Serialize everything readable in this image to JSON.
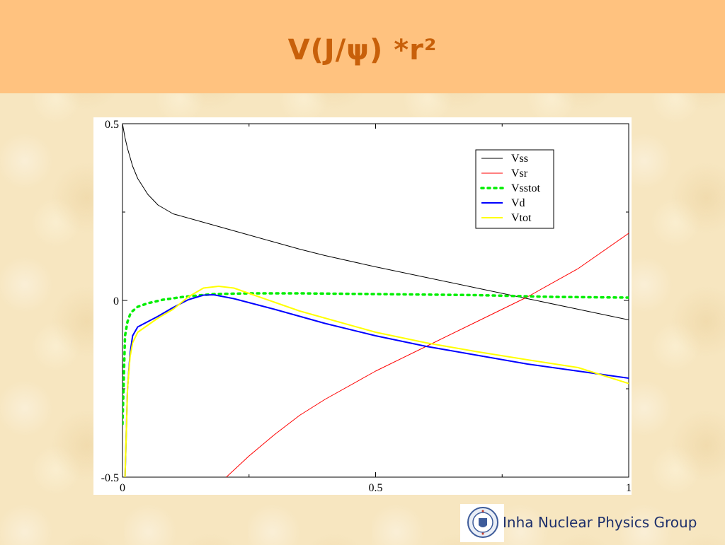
{
  "header": {
    "title": "V(J/ψ) *r²"
  },
  "footer": {
    "group_name": "Inha Nuclear Physics Group",
    "logo_icon": "university-seal-icon"
  },
  "chart_data": {
    "type": "line",
    "x_tick_labels": [
      "0",
      "0.5",
      "1"
    ],
    "y_tick_labels": [
      "-0.5",
      "0",
      "0.5"
    ],
    "xlim": [
      0,
      1
    ],
    "ylim": [
      -0.5,
      0.5
    ],
    "grid": false,
    "legend_position": "top-right",
    "series": [
      {
        "name": "Vss",
        "color": "#000000",
        "style": "solid",
        "x": [
          0.0,
          0.005,
          0.01,
          0.02,
          0.03,
          0.05,
          0.07,
          0.1,
          0.15,
          0.2,
          0.25,
          0.3,
          0.35,
          0.4,
          0.5,
          0.6,
          0.7,
          0.8,
          0.9,
          1.0
        ],
        "y": [
          0.5,
          0.46,
          0.43,
          0.38,
          0.345,
          0.3,
          0.27,
          0.245,
          0.225,
          0.205,
          0.185,
          0.165,
          0.145,
          0.127,
          0.095,
          0.065,
          0.035,
          0.005,
          -0.025,
          -0.055
        ]
      },
      {
        "name": "Vsr",
        "color": "#ff0000",
        "style": "solid",
        "x": [
          0.205,
          0.25,
          0.3,
          0.35,
          0.4,
          0.5,
          0.6,
          0.7,
          0.8,
          0.9,
          1.0
        ],
        "y": [
          -0.5,
          -0.44,
          -0.38,
          -0.325,
          -0.28,
          -0.2,
          -0.13,
          -0.06,
          0.01,
          0.09,
          0.19
        ]
      },
      {
        "name": "Vsstot",
        "color": "#00ee00",
        "style": "dotted",
        "x": [
          0.0,
          0.005,
          0.01,
          0.015,
          0.02,
          0.03,
          0.05,
          0.08,
          0.12,
          0.18,
          0.25,
          0.35,
          0.5,
          0.7,
          0.85,
          1.0
        ],
        "y": [
          -0.35,
          -0.1,
          -0.06,
          -0.04,
          -0.03,
          -0.018,
          -0.008,
          0.002,
          0.01,
          0.018,
          0.02,
          0.02,
          0.018,
          0.015,
          0.01,
          0.008
        ]
      },
      {
        "name": "Vd",
        "color": "#0000ff",
        "style": "solid",
        "x": [
          0.005,
          0.01,
          0.015,
          0.02,
          0.03,
          0.05,
          0.07,
          0.1,
          0.13,
          0.16,
          0.18,
          0.22,
          0.26,
          0.3,
          0.35,
          0.4,
          0.5,
          0.6,
          0.7,
          0.8,
          0.9,
          1.0
        ],
        "y": [
          -0.5,
          -0.25,
          -0.15,
          -0.1,
          -0.075,
          -0.06,
          -0.045,
          -0.02,
          0.002,
          0.015,
          0.016,
          0.005,
          -0.01,
          -0.025,
          -0.045,
          -0.065,
          -0.1,
          -0.13,
          -0.155,
          -0.18,
          -0.2,
          -0.22
        ]
      },
      {
        "name": "Vtot",
        "color": "#ffff00",
        "style": "solid",
        "x": [
          0.005,
          0.01,
          0.015,
          0.02,
          0.03,
          0.05,
          0.07,
          0.1,
          0.13,
          0.16,
          0.19,
          0.22,
          0.26,
          0.3,
          0.35,
          0.4,
          0.5,
          0.6,
          0.7,
          0.8,
          0.9,
          1.0
        ],
        "y": [
          -0.5,
          -0.25,
          -0.16,
          -0.12,
          -0.09,
          -0.07,
          -0.05,
          -0.025,
          0.01,
          0.035,
          0.04,
          0.035,
          0.015,
          -0.005,
          -0.03,
          -0.05,
          -0.09,
          -0.12,
          -0.145,
          -0.168,
          -0.19,
          -0.235
        ]
      }
    ]
  }
}
